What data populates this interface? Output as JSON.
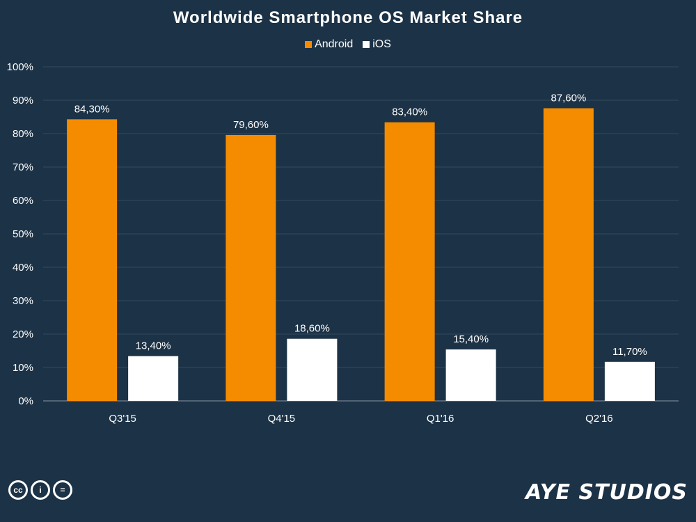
{
  "chart_data": {
    "type": "bar",
    "title": "Worldwide Smartphone OS Market Share",
    "categories": [
      "Q3'15",
      "Q4'15",
      "Q1'16",
      "Q2'16"
    ],
    "series": [
      {
        "name": "Android",
        "color": "#f58c00",
        "values": [
          84.3,
          79.6,
          83.4,
          87.6
        ],
        "labels": [
          "84,30%",
          "79,60%",
          "83,40%",
          "87,60%"
        ]
      },
      {
        "name": "iOS",
        "color": "#ffffff",
        "values": [
          13.4,
          18.6,
          15.4,
          11.7
        ],
        "labels": [
          "13,40%",
          "18,60%",
          "15,40%",
          "11,70%"
        ]
      }
    ],
    "ylim": [
      0,
      100
    ],
    "yticks": [
      "0%",
      "10%",
      "20%",
      "30%",
      "40%",
      "50%",
      "60%",
      "70%",
      "80%",
      "90%",
      "100%"
    ],
    "grid": true,
    "legend_position": "top-center"
  },
  "footer": {
    "license_icons": [
      "cc-icon",
      "by-icon",
      "nd-icon"
    ],
    "license_glyphs": [
      "cc",
      "i",
      "="
    ],
    "logo_text": "AYE STUDIOS"
  }
}
